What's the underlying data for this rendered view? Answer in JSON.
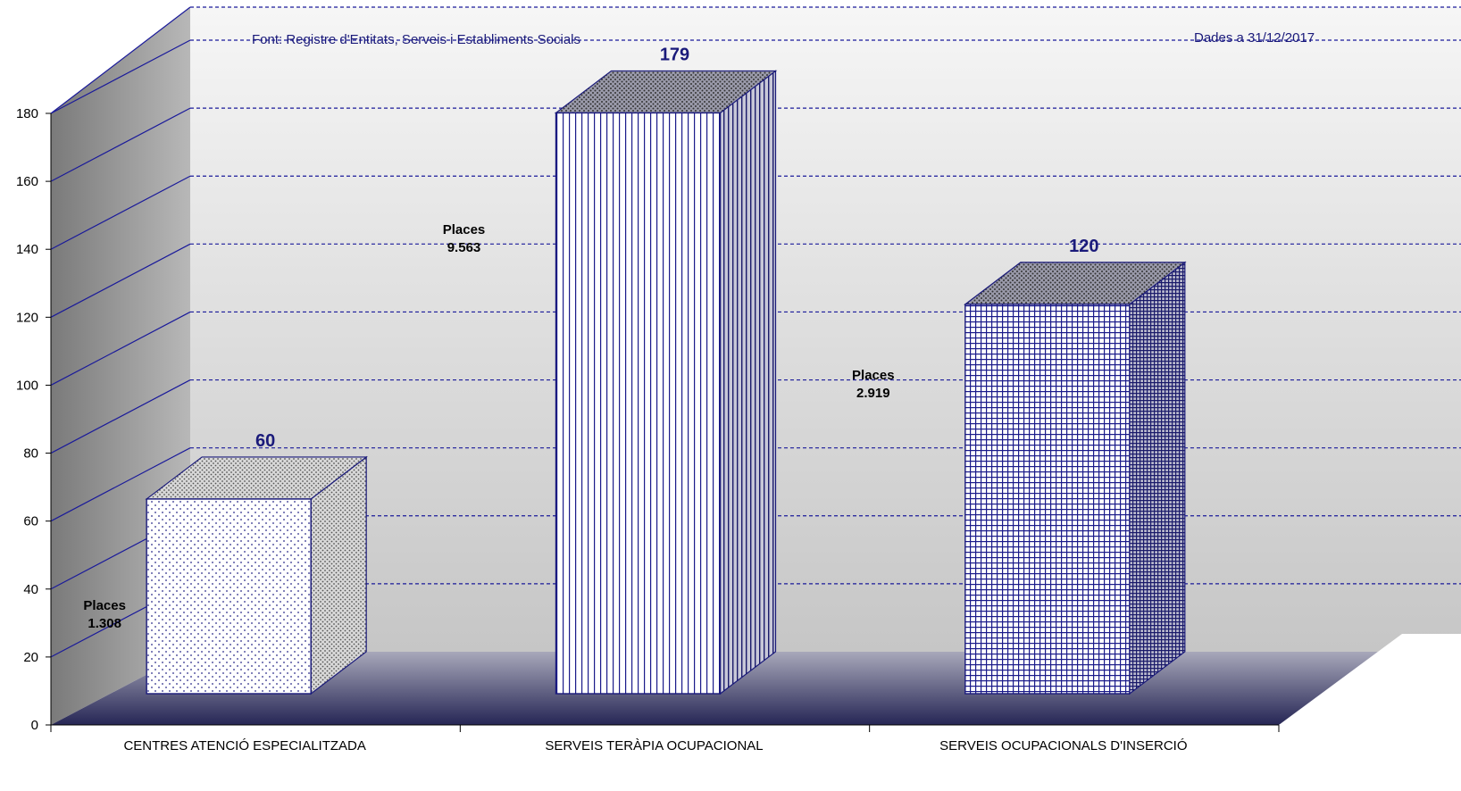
{
  "source_note": "Font: Registre d'Entitats, Serveis i Establiments Socials",
  "date_note": "Dades a 31/12/2017",
  "colors": {
    "accent": "#1a1a7a",
    "grid": "#1a1a9a",
    "wall_top": "#f4f4f4",
    "wall_bottom": "#c9c9c9",
    "floor_front": "#2a2a5a",
    "floor_back": "#a8a8b8"
  },
  "chart_data": {
    "type": "bar",
    "title": "",
    "xlabel": "",
    "ylabel": "",
    "ylim": [
      0,
      180
    ],
    "yticks": [
      0,
      20,
      40,
      60,
      80,
      100,
      120,
      140,
      160,
      180
    ],
    "grid": true,
    "categories": [
      "CENTRES ATENCIÓ ESPECIALITZADA",
      "SERVEIS TERÀPIA OCUPACIONAL",
      "SERVEIS OCUPACIONALS D'INSERCIÓ"
    ],
    "values": [
      60,
      179,
      120
    ],
    "value_labels": [
      "60",
      "179",
      "120"
    ],
    "places": [
      {
        "title": "Places",
        "value": "1.308"
      },
      {
        "title": "Places",
        "value": "9.563"
      },
      {
        "title": "Places",
        "value": "2.919"
      }
    ]
  }
}
